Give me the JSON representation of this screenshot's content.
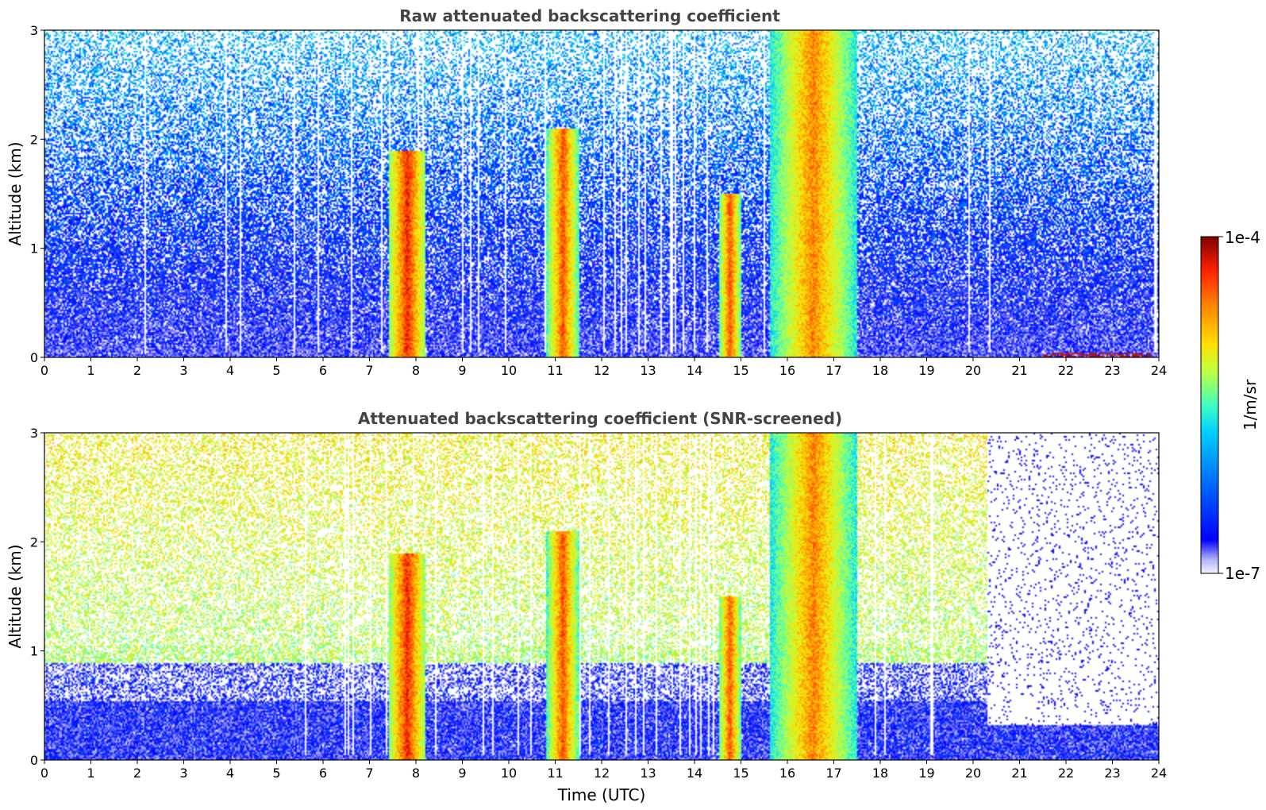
{
  "chart_data": [
    {
      "type": "heatmap",
      "title": "Raw attenuated backscattering coefficient",
      "xlabel": "",
      "ylabel": "Altitude (km)",
      "xlim": [
        0,
        24
      ],
      "ylim": [
        0,
        3
      ],
      "x_ticks": [
        "0",
        "1",
        "2",
        "3",
        "4",
        "5",
        "6",
        "7",
        "8",
        "9",
        "10",
        "11",
        "12",
        "13",
        "14",
        "15",
        "16",
        "17",
        "18",
        "19",
        "20",
        "21",
        "22",
        "23",
        "24"
      ],
      "y_ticks": [
        "0",
        "1",
        "2",
        "3"
      ],
      "features": [
        {
          "t0": 7.4,
          "t1": 8.2,
          "z1": 1.9,
          "level": 0.9
        },
        {
          "t0": 10.8,
          "t1": 11.5,
          "z1": 2.1,
          "level": 0.85
        },
        {
          "t0": 14.5,
          "t1": 15.0,
          "z1": 1.5,
          "level": 0.85
        },
        {
          "t0": 15.6,
          "t1": 17.5,
          "z1": 3.0,
          "level": 0.8
        }
      ],
      "surface_layer": {
        "t0": 21.5,
        "t1": 23.8,
        "z1": 0.05,
        "level": 0.95
      },
      "snr_screened": false
    },
    {
      "type": "heatmap",
      "title": "Attenuated backscattering coefficient (SNR-screened)",
      "xlabel": "Time (UTC)",
      "ylabel": "Altitude (km)",
      "xlim": [
        0,
        24
      ],
      "ylim": [
        0,
        3
      ],
      "x_ticks": [
        "0",
        "1",
        "2",
        "3",
        "4",
        "5",
        "6",
        "7",
        "8",
        "9",
        "10",
        "11",
        "12",
        "13",
        "14",
        "15",
        "16",
        "17",
        "18",
        "19",
        "20",
        "21",
        "22",
        "23",
        "24"
      ],
      "y_ticks": [
        "0",
        "1",
        "2",
        "3"
      ],
      "features": [
        {
          "t0": 7.4,
          "t1": 8.2,
          "z1": 1.9,
          "level": 0.9
        },
        {
          "t0": 10.8,
          "t1": 11.5,
          "z1": 2.1,
          "level": 0.85
        },
        {
          "t0": 14.5,
          "t1": 15.0,
          "z1": 1.5,
          "level": 0.85
        },
        {
          "t0": 15.6,
          "t1": 17.5,
          "z1": 3.0,
          "level": 0.8
        }
      ],
      "blocked_region": {
        "t0": 20.3,
        "t1": 24,
        "z0": 0.33
      },
      "snr_screened": true
    }
  ],
  "colorbar": {
    "label": "1/m/sr",
    "max_label": "1e-4",
    "min_label": "1e-7",
    "colormap": "jet",
    "scale": "log",
    "colors": [
      "#e8e8ff",
      "#b0b0ff",
      "#0000ff",
      "#0060ff",
      "#00c0ff",
      "#40ffc0",
      "#c0ff40",
      "#ffe000",
      "#ff8000",
      "#ff2000",
      "#800000"
    ]
  }
}
